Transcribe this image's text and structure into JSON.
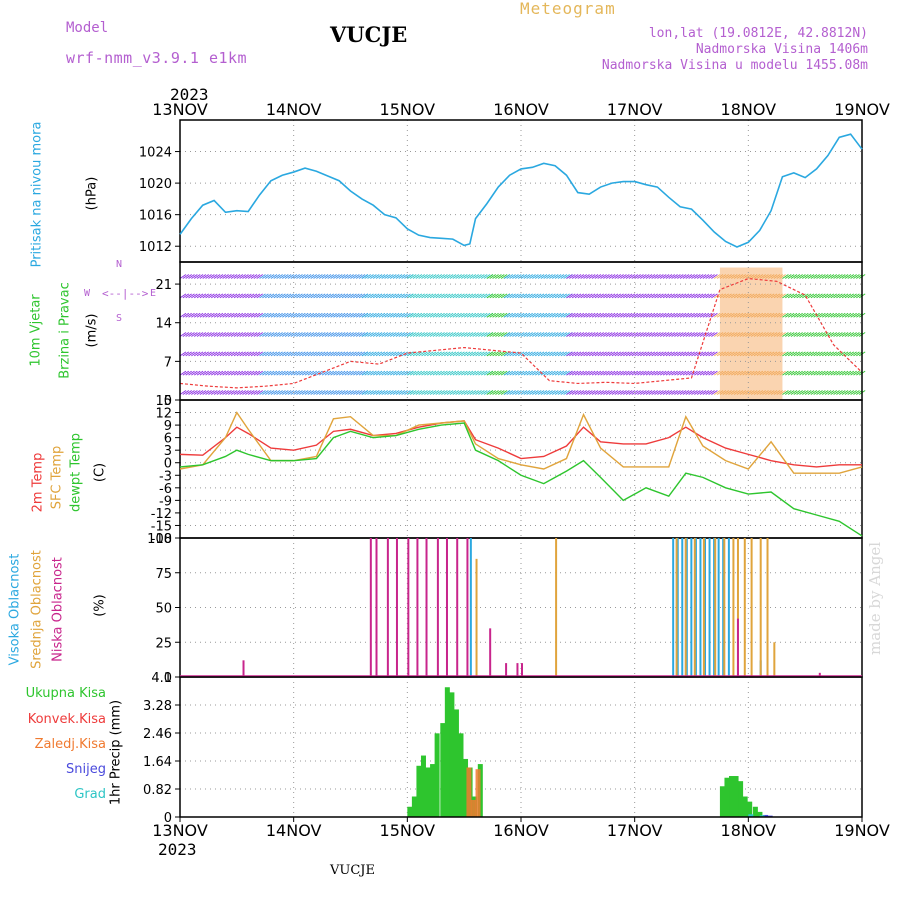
{
  "header": {
    "model_label": "Model",
    "model_name": "wrf-nmm_v3.9.1 e1km",
    "station": "VUCJE",
    "meteogram_label": "Meteogram",
    "lonlat": "lon,lat (19.0812E, 42.8812N)",
    "elevation": "Nadmorska Visina 1406m",
    "model_elevation": "Nadmorska Visina u modelu 1455.08m"
  },
  "axis": {
    "year": "2023",
    "dates": [
      "13NOV",
      "14NOV",
      "15NOV",
      "16NOV",
      "17NOV",
      "18NOV",
      "19NOV"
    ]
  },
  "footer": {
    "station": "VUCJE",
    "credit": "made by Angel"
  },
  "panel_labels": {
    "pressure": [
      "Pritisak na nivou mora",
      "(hPa)"
    ],
    "wind": [
      "10m Vjetar",
      "Brzina i Pravac",
      "(m/s)"
    ],
    "temp": [
      "2m Temp",
      "SFC Temp",
      "dewpt Temp",
      "(C)"
    ],
    "cloud": [
      "Visoka Oblacnost",
      "Srednja Oblacnost",
      "Niska Oblacnost",
      "(%)"
    ],
    "precip_unit": "1hr Precip (mm)",
    "precip_legend": [
      "Ukupna Kisa",
      "Konvek.Kisa",
      "Zaledj.Kisa",
      "Snijeg",
      "Grad"
    ]
  },
  "compass": {
    "north": "N",
    "south": "S",
    "west": "W",
    "east": "E"
  },
  "colors": {
    "pressure": "#2aa8e0",
    "t2m": "#ee3b3b",
    "tsfc": "#e0a43c",
    "dewpt": "#2ec52e",
    "cloud_high": "#2aa8e0",
    "cloud_mid": "#e0a43c",
    "cloud_low": "#c8258c",
    "rain_total": "#2ec52e",
    "rain_conv": "#ee3b3b",
    "rain_frz": "#f07a30",
    "snow": "#4a4adc",
    "hail": "#2ec5c5",
    "label_pressure": "#2aa8e0",
    "label_wind1": "#2ec52e",
    "label_wind2": "#2ec52e",
    "label_unit": "#000000"
  },
  "chart_data": [
    {
      "type": "line",
      "panel": "pressure",
      "ylabel": "(hPa)",
      "ylim": [
        1010,
        1028
      ],
      "yticks": [
        1012,
        1016,
        1020,
        1024
      ],
      "x_unit": "days from 13NOV 00UTC",
      "series": [
        {
          "name": "",
          "x": [
            0,
            0.1,
            0.2,
            0.3,
            0.4,
            0.5,
            0.6,
            0.7,
            0.8,
            0.9,
            1.0,
            1.1,
            1.2,
            1.3,
            1.4,
            1.5,
            1.6,
            1.7,
            1.8,
            1.9,
            2.0,
            2.1,
            2.2,
            2.3,
            2.4,
            2.5,
            2.55,
            2.6,
            2.7,
            2.8,
            2.9,
            3.0,
            3.1,
            3.2,
            3.3,
            3.4,
            3.5,
            3.6,
            3.7,
            3.8,
            3.9,
            4.0,
            4.1,
            4.2,
            4.3,
            4.4,
            4.5,
            4.6,
            4.7,
            4.8,
            4.9,
            5.0,
            5.1,
            5.2,
            5.3,
            5.4,
            5.5,
            5.6,
            5.7,
            5.8,
            5.9,
            6.0
          ],
          "values": [
            1013.5,
            1015.5,
            1017.2,
            1017.8,
            1016.3,
            1016.5,
            1016.4,
            1018.5,
            1020.3,
            1021.0,
            1021.4,
            1021.9,
            1021.5,
            1020.9,
            1020.3,
            1019.0,
            1018.0,
            1017.2,
            1016.0,
            1015.6,
            1014.2,
            1013.4,
            1013.1,
            1013.0,
            1012.9,
            1012.1,
            1012.3,
            1015.5,
            1017.4,
            1019.5,
            1021.0,
            1021.8,
            1022.0,
            1022.5,
            1022.2,
            1021.0,
            1018.8,
            1018.6,
            1019.5,
            1020.0,
            1020.2,
            1020.2,
            1019.8,
            1019.5,
            1018.2,
            1017.0,
            1016.7,
            1015.3,
            1013.8,
            1012.6,
            1011.9,
            1012.5,
            1014.0,
            1016.5,
            1020.8,
            1021.3,
            1020.7,
            1021.8,
            1023.5,
            1025.8,
            1026.2,
            1024.3
          ]
        }
      ]
    },
    {
      "type": "line",
      "panel": "wind",
      "ylabel": "(m/s)",
      "ylim": [
        0,
        25
      ],
      "yticks": [
        0,
        7,
        14,
        21
      ],
      "series": [
        {
          "name": "",
          "x": [
            0,
            0.25,
            0.5,
            0.75,
            1.0,
            1.25,
            1.5,
            1.75,
            2.0,
            2.25,
            2.5,
            2.75,
            3.0,
            3.25,
            3.5,
            3.75,
            4.0,
            4.25,
            4.5,
            4.75,
            5.0,
            5.25,
            5.5,
            5.75,
            6.0
          ],
          "values": [
            3.0,
            2.5,
            2.2,
            2.5,
            3.0,
            5.0,
            7.0,
            6.5,
            8.5,
            9.0,
            9.5,
            9.0,
            8.5,
            3.5,
            3.0,
            3.2,
            3.0,
            3.5,
            4.0,
            20.0,
            22.0,
            21.5,
            19.0,
            10.0,
            5.0
          ]
        }
      ]
    },
    {
      "type": "line",
      "panel": "temperature",
      "ylabel": "(C)",
      "ylim": [
        -18,
        15
      ],
      "yticks": [
        -18,
        -15,
        -12,
        -9,
        -6,
        -3,
        0,
        3,
        6,
        9,
        12,
        15
      ],
      "x": [
        0,
        0.2,
        0.4,
        0.5,
        0.6,
        0.8,
        1.0,
        1.2,
        1.35,
        1.5,
        1.7,
        1.9,
        2.1,
        2.3,
        2.5,
        2.6,
        2.8,
        3.0,
        3.2,
        3.4,
        3.55,
        3.7,
        3.9,
        4.1,
        4.3,
        4.45,
        4.6,
        4.8,
        5.0,
        5.2,
        5.4,
        5.6,
        5.8,
        6.0
      ],
      "series": [
        {
          "name": "2m Temp",
          "values": [
            2.0,
            1.8,
            6.0,
            8.5,
            7.0,
            3.5,
            3.0,
            4.2,
            7.5,
            8.0,
            6.5,
            7.0,
            8.5,
            9.5,
            10.0,
            5.5,
            3.5,
            1.0,
            1.5,
            4.0,
            8.5,
            5.0,
            4.5,
            4.5,
            6.0,
            8.5,
            6.0,
            3.5,
            2.0,
            0.5,
            -0.5,
            -1.0,
            -0.5,
            -0.5
          ]
        },
        {
          "name": "SFC Temp",
          "values": [
            -1.5,
            -0.5,
            6.0,
            12.0,
            8.0,
            0.5,
            0.5,
            1.5,
            10.5,
            11.0,
            6.5,
            6.5,
            9.0,
            9.5,
            10.0,
            4.5,
            1.0,
            -0.5,
            -1.5,
            1.0,
            11.5,
            3.5,
            -1.0,
            -1.0,
            -1.0,
            11.0,
            4.0,
            0.5,
            -1.5,
            5.0,
            -2.5,
            -2.5,
            -2.5,
            -1.0
          ]
        },
        {
          "name": "dewpt Temp",
          "values": [
            -1.0,
            -0.5,
            1.5,
            3.0,
            2.0,
            0.5,
            0.5,
            1.0,
            6.0,
            7.5,
            6.0,
            6.5,
            8.0,
            9.0,
            9.5,
            3.0,
            0.5,
            -3.0,
            -5.0,
            -2.0,
            0.5,
            -3.5,
            -9.0,
            -6.0,
            -8.0,
            -2.5,
            -3.5,
            -6.0,
            -7.5,
            -7.0,
            -11.0,
            -12.5,
            -14.0,
            -17.5
          ]
        }
      ]
    },
    {
      "type": "bar",
      "panel": "cloud",
      "ylabel": "(%)",
      "ylim": [
        0,
        100
      ],
      "yticks": [
        0,
        25,
        50,
        75,
        100
      ],
      "series": [
        {
          "name": "Visoka Oblacnost",
          "x": [
            2.55,
            4.33,
            4.37,
            4.41,
            4.45,
            4.49,
            4.53,
            4.57,
            4.61,
            4.65,
            4.69,
            4.73,
            4.77,
            4.82,
            4.9,
            5.1
          ],
          "values": [
            100,
            100,
            100,
            100,
            100,
            100,
            100,
            100,
            100,
            100,
            100,
            100,
            100,
            100,
            8,
            12
          ]
        },
        {
          "name": "Srednja Oblacnost",
          "x": [
            2.6,
            3.3,
            4.36,
            4.44,
            4.52,
            4.6,
            4.7,
            4.78,
            4.86,
            4.9,
            4.96,
            5.02,
            5.1,
            5.16,
            5.22
          ],
          "values": [
            85,
            100,
            100,
            100,
            100,
            100,
            100,
            100,
            100,
            100,
            100,
            100,
            100,
            100,
            25
          ]
        },
        {
          "name": "Niska Oblacnost",
          "x": [
            0.55,
            1.67,
            1.72,
            1.82,
            1.9,
            2.0,
            2.08,
            2.16,
            2.26,
            2.34,
            2.43,
            2.52,
            2.72,
            2.86,
            2.96,
            3.0,
            4.9,
            5.62
          ],
          "values": [
            12,
            100,
            100,
            100,
            100,
            100,
            100,
            100,
            100,
            100,
            100,
            100,
            35,
            10,
            10,
            10,
            42,
            3
          ]
        }
      ]
    },
    {
      "type": "bar",
      "panel": "precip",
      "ylabel": "1hr Precip (mm)",
      "ylim": [
        0,
        4.1
      ],
      "yticks": [
        0,
        0.82,
        1.64,
        2.46,
        3.28,
        4.1
      ],
      "series": [
        {
          "name": "Ukupna Kisa",
          "x": [
            2.0,
            2.04,
            2.08,
            2.12,
            2.16,
            2.2,
            2.24,
            2.29,
            2.33,
            2.37,
            2.41,
            2.45,
            2.49,
            2.53,
            2.57,
            2.62,
            4.75,
            4.79,
            4.83,
            4.87,
            4.91,
            4.95,
            4.99,
            5.04,
            5.08
          ],
          "values": [
            0.3,
            0.6,
            1.5,
            1.8,
            1.45,
            1.55,
            2.45,
            2.75,
            3.8,
            3.65,
            3.15,
            2.45,
            1.7,
            1.45,
            0.6,
            1.55,
            0.9,
            1.15,
            1.2,
            1.2,
            1.05,
            0.6,
            0.45,
            0.3,
            0.15
          ]
        },
        {
          "name": "Konvek.Kisa",
          "x": [],
          "values": []
        },
        {
          "name": "Zaledj.Kisa",
          "x": [
            2.52,
            2.56,
            2.6
          ],
          "values": [
            1.45,
            0.5,
            1.4
          ]
        },
        {
          "name": "Snijeg",
          "x": [
            5.13,
            5.17
          ],
          "values": [
            0.06,
            0.04
          ]
        },
        {
          "name": "Grad",
          "x": [
            5.0,
            5.1
          ],
          "values": [
            0.08,
            0.05
          ]
        }
      ]
    }
  ]
}
